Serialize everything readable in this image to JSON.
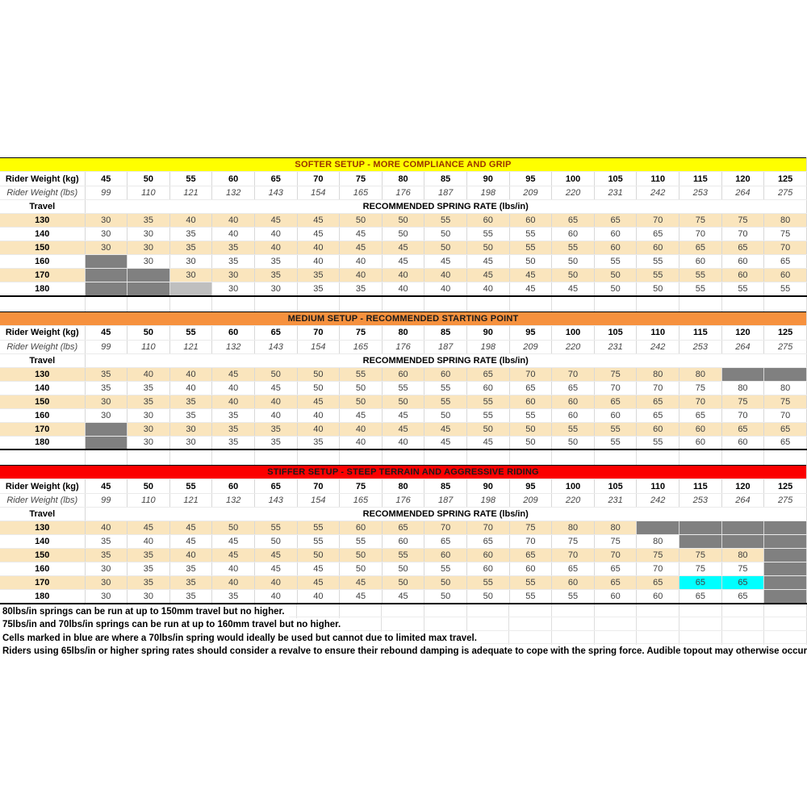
{
  "labels": {
    "kg": "Rider Weight (kg)",
    "lbs": "Rider Weight (lbs)",
    "travel": "Travel",
    "spring": "RECOMMENDED SPRING RATE (lbs/in)"
  },
  "colors": {
    "stripe": "#FAE5BD",
    "gray_cell": "#808080",
    "lightgray_cell": "#BFBFBF",
    "cyan_cell": "#00FFFF",
    "softer_band": "#FFFF00",
    "softer_text": "#993300",
    "medium_band": "#F6913E",
    "medium_text": "#1A1A1A",
    "stiffer_band": "#FB0000",
    "stiffer_text": "#1A1A1A"
  },
  "chart_data": {
    "type": "table",
    "columns_kg": [
      "45",
      "50",
      "55",
      "60",
      "65",
      "70",
      "75",
      "80",
      "85",
      "90",
      "95",
      "100",
      "105",
      "110",
      "115",
      "120",
      "125"
    ],
    "columns_lbs": [
      "99",
      "110",
      "121",
      "132",
      "143",
      "154",
      "165",
      "176",
      "187",
      "198",
      "209",
      "220",
      "231",
      "242",
      "253",
      "264",
      "275"
    ],
    "tables": [
      {
        "id": "softer",
        "title": "SOFTER SETUP - MORE COMPLIANCE AND GRIP",
        "band_bg": "#FFFF00",
        "band_fg": "#993300",
        "rows": [
          {
            "travel": "130",
            "values": [
              "30",
              "35",
              "40",
              "40",
              "45",
              "45",
              "50",
              "50",
              "55",
              "60",
              "60",
              "65",
              "65",
              "70",
              "75",
              "75",
              "80"
            ]
          },
          {
            "travel": "140",
            "values": [
              "30",
              "30",
              "35",
              "40",
              "40",
              "45",
              "45",
              "50",
              "50",
              "55",
              "55",
              "60",
              "60",
              "65",
              "70",
              "70",
              "75"
            ]
          },
          {
            "travel": "150",
            "values": [
              "30",
              "30",
              "35",
              "35",
              "40",
              "40",
              "45",
              "45",
              "50",
              "50",
              "55",
              "55",
              "60",
              "60",
              "65",
              "65",
              "70"
            ]
          },
          {
            "travel": "160",
            "values": [
              "G",
              "30",
              "30",
              "35",
              "35",
              "40",
              "40",
              "45",
              "45",
              "45",
              "50",
              "50",
              "55",
              "55",
              "60",
              "60",
              "65"
            ]
          },
          {
            "travel": "170",
            "values": [
              "G",
              "G",
              "30",
              "30",
              "35",
              "35",
              "40",
              "40",
              "40",
              "45",
              "45",
              "50",
              "50",
              "55",
              "55",
              "60",
              "60"
            ]
          },
          {
            "travel": "180",
            "values": [
              "G",
              "G",
              "LG",
              "30",
              "30",
              "35",
              "35",
              "40",
              "40",
              "40",
              "45",
              "45",
              "50",
              "50",
              "55",
              "55",
              "55"
            ]
          }
        ]
      },
      {
        "id": "medium",
        "title": "MEDIUM SETUP - RECOMMENDED STARTING POINT",
        "band_bg": "#F6913E",
        "band_fg": "#1A1A1A",
        "rows": [
          {
            "travel": "130",
            "values": [
              "35",
              "40",
              "40",
              "45",
              "50",
              "50",
              "55",
              "60",
              "60",
              "65",
              "70",
              "70",
              "75",
              "80",
              "80",
              "G",
              "G"
            ]
          },
          {
            "travel": "140",
            "values": [
              "35",
              "35",
              "40",
              "40",
              "45",
              "50",
              "50",
              "55",
              "55",
              "60",
              "65",
              "65",
              "70",
              "70",
              "75",
              "80",
              "80"
            ]
          },
          {
            "travel": "150",
            "values": [
              "30",
              "35",
              "35",
              "40",
              "40",
              "45",
              "50",
              "50",
              "55",
              "55",
              "60",
              "60",
              "65",
              "65",
              "70",
              "75",
              "75"
            ]
          },
          {
            "travel": "160",
            "values": [
              "30",
              "30",
              "35",
              "35",
              "40",
              "40",
              "45",
              "45",
              "50",
              "55",
              "55",
              "60",
              "60",
              "65",
              "65",
              "70",
              "70"
            ]
          },
          {
            "travel": "170",
            "values": [
              "G",
              "30",
              "30",
              "35",
              "35",
              "40",
              "40",
              "45",
              "45",
              "50",
              "50",
              "55",
              "55",
              "60",
              "60",
              "65",
              "65"
            ]
          },
          {
            "travel": "180",
            "values": [
              "G",
              "30",
              "30",
              "35",
              "35",
              "35",
              "40",
              "40",
              "45",
              "45",
              "50",
              "50",
              "55",
              "55",
              "60",
              "60",
              "65"
            ]
          }
        ]
      },
      {
        "id": "stiffer",
        "title": "STIFFER SETUP - STEEP TERRAIN AND AGGRESSIVE RIDING",
        "band_bg": "#FB0000",
        "band_fg": "#1A1A1A",
        "rows": [
          {
            "travel": "130",
            "values": [
              "40",
              "45",
              "45",
              "50",
              "55",
              "55",
              "60",
              "65",
              "70",
              "70",
              "75",
              "80",
              "80",
              "G",
              "G",
              "G",
              "G"
            ]
          },
          {
            "travel": "140",
            "values": [
              "35",
              "40",
              "45",
              "45",
              "50",
              "55",
              "55",
              "60",
              "65",
              "65",
              "70",
              "75",
              "75",
              "80",
              "G",
              "G",
              "G"
            ]
          },
          {
            "travel": "150",
            "values": [
              "35",
              "35",
              "40",
              "45",
              "45",
              "50",
              "50",
              "55",
              "60",
              "60",
              "65",
              "70",
              "70",
              "75",
              "75",
              "80",
              "G"
            ]
          },
          {
            "travel": "160",
            "values": [
              "30",
              "35",
              "35",
              "40",
              "45",
              "45",
              "50",
              "50",
              "55",
              "60",
              "60",
              "65",
              "65",
              "70",
              "75",
              "75",
              "G"
            ]
          },
          {
            "travel": "170",
            "values": [
              "30",
              "35",
              "35",
              "40",
              "40",
              "45",
              "45",
              "50",
              "50",
              "55",
              "55",
              "60",
              "65",
              "65",
              "C:65",
              "C:65",
              "G"
            ]
          },
          {
            "travel": "180",
            "values": [
              "30",
              "30",
              "35",
              "35",
              "40",
              "40",
              "45",
              "45",
              "50",
              "50",
              "55",
              "55",
              "60",
              "60",
              "65",
              "65",
              "G"
            ]
          }
        ]
      }
    ]
  },
  "notes": [
    "80lbs/in springs can be run at up to 150mm travel but no higher.",
    "75lbs/in and 70lbs/in springs can be run at up to 160mm travel but no higher.",
    "Cells marked in blue are where a 70lbs/in spring would ideally be used but cannot due to limited max travel.",
    "Riders using 65lbs/in or higher spring rates should consider a revalve to ensure their rebound damping is adequate to cope with the spring force. Audible topout may otherwise occur."
  ]
}
